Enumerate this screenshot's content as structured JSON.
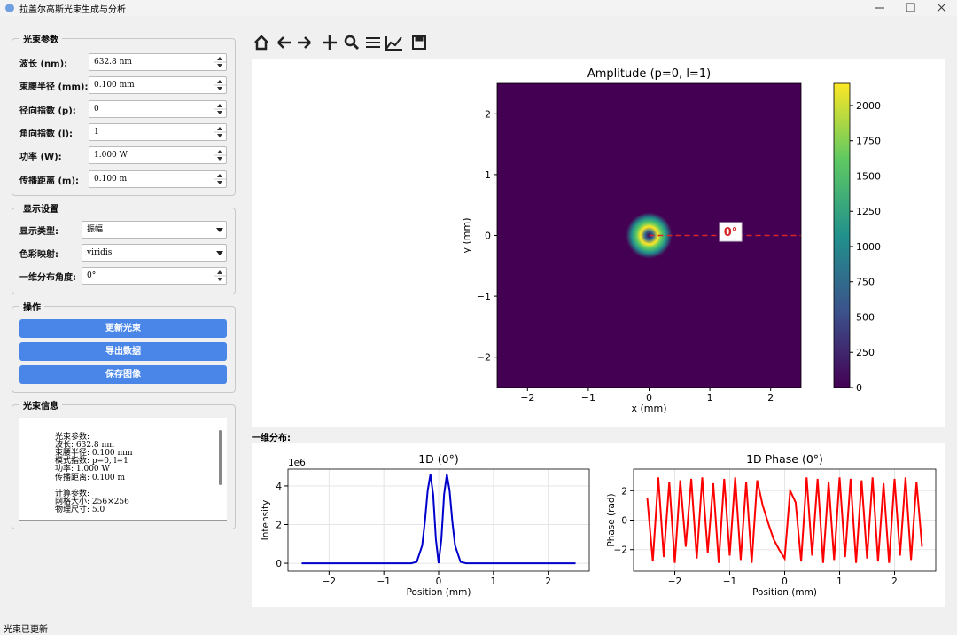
{
  "window": {
    "title": "拉盖尔高斯光束生成与分析"
  },
  "beam_params": {
    "title": "光束参数",
    "fields": [
      {
        "label": "波长 (nm):",
        "value": "632.8 nm"
      },
      {
        "label": "束腰半径 (mm):",
        "value": "0.100 mm"
      },
      {
        "label": "径向指数 (p):",
        "value": "0"
      },
      {
        "label": "角向指数 (l):",
        "value": "1"
      },
      {
        "label": "功率 (W):",
        "value": "1.000 W"
      },
      {
        "label": "传播距离 (m):",
        "value": "0.100 m"
      }
    ]
  },
  "display": {
    "title": "显示设置",
    "fields": [
      {
        "label": "显示类型:",
        "value": "振幅",
        "kind": "combo"
      },
      {
        "label": "色彩映射:",
        "value": "viridis",
        "kind": "combo"
      },
      {
        "label": "一维分布角度:",
        "value": "0°",
        "kind": "spin"
      }
    ]
  },
  "actions": {
    "title": "操作",
    "buttons": [
      "更新光束",
      "导出数据",
      "保存图像"
    ]
  },
  "info": {
    "title": "光束信息",
    "beam": [
      "光束参数:",
      "波长: 632.8 nm",
      "束腰半径: 0.100 mm",
      "模式指数: p=0, l=1",
      "功率: 1.000 W",
      "传播距离: 0.100 m"
    ],
    "calc": [
      "计算参数:",
      "网格大小: 256×256",
      "物理尺寸: 5.0"
    ]
  },
  "section_label": "一维分布:",
  "status": "光束已更新",
  "chart_data": [
    {
      "type": "heatmap",
      "title": "Amplitude (p=0, l=1)",
      "x_label": "x (mm)",
      "y_label": "y (mm)",
      "colormap": "viridis",
      "xlim": [
        -2.5,
        2.5
      ],
      "ylim": [
        -2.5,
        2.5
      ],
      "xticks": [
        {
          "value": -2,
          "label": "−2"
        },
        {
          "value": -1,
          "label": "−1"
        },
        0,
        1,
        2
      ],
      "yticks": [
        {
          "value": -2,
          "label": "−2"
        },
        {
          "value": -1,
          "label": "−1"
        },
        0,
        1,
        2
      ],
      "clim": [
        0,
        2157
      ],
      "cticks": [
        0,
        250,
        500,
        750,
        1000,
        1250,
        1500,
        1750,
        2000
      ],
      "annotation": "0°",
      "annotation_color": "#d62728"
    },
    {
      "type": "line",
      "title": "1D (0°)",
      "x_label": "Position (mm)",
      "y_label": "Intensity",
      "y_offset_label": "1e6",
      "color": "#0000cc",
      "grid": true,
      "xlim": [
        -2.75,
        2.75
      ],
      "ylim": [
        -0.41,
        4.87
      ],
      "xticks": [
        {
          "value": -2,
          "label": "−2"
        },
        {
          "value": -1,
          "label": "−1"
        },
        0,
        1,
        2
      ],
      "yticks": [
        0,
        2,
        4
      ],
      "x": [
        -2.5,
        -0.5,
        -0.4,
        -0.3,
        -0.25,
        -0.2,
        -0.15,
        -0.1,
        -0.05,
        0,
        0.05,
        0.1,
        0.15,
        0.2,
        0.25,
        0.3,
        0.4,
        0.5,
        2.5
      ],
      "values": [
        0,
        0,
        0.07,
        0.92,
        2.16,
        3.76,
        4.6,
        3.56,
        1.24,
        0,
        1.24,
        3.56,
        4.6,
        3.76,
        2.16,
        0.92,
        0.07,
        0,
        0
      ]
    },
    {
      "type": "line",
      "title": "1D Phase (0°)",
      "x_label": "Position (mm)",
      "y_label": "Phase (rad)",
      "color": "#ff0000",
      "grid": true,
      "xlim": [
        -2.75,
        2.75
      ],
      "ylim": [
        -3.46,
        3.46
      ],
      "xticks": [
        {
          "value": -2,
          "label": "−2"
        },
        {
          "value": -1,
          "label": "−1"
        },
        0,
        1,
        2
      ],
      "yticks": [
        {
          "value": -2,
          "label": "−2"
        },
        0,
        2
      ],
      "x": [
        -2.5,
        -2.4,
        -2.3,
        -2.2,
        -2.1,
        -2.0,
        -1.9,
        -1.8,
        -1.7,
        -1.6,
        -1.5,
        -1.4,
        -1.3,
        -1.2,
        -1.1,
        -1.0,
        -0.9,
        -0.8,
        -0.7,
        -0.6,
        -0.5,
        -0.4,
        -0.3,
        -0.2,
        -0.1,
        0,
        0.1,
        0.2,
        0.3,
        0.4,
        0.5,
        0.6,
        0.7,
        0.8,
        0.9,
        1.0,
        1.1,
        1.2,
        1.3,
        1.4,
        1.5,
        1.6,
        1.7,
        1.8,
        1.9,
        2.0,
        2.1,
        2.2,
        2.3,
        2.4,
        2.5
      ],
      "values": [
        1.5,
        -2.8,
        2.9,
        -2.5,
        2.6,
        -2.9,
        2.7,
        -1.8,
        2.8,
        -2.6,
        2.9,
        -2.2,
        2.5,
        -2.9,
        2.8,
        -2.4,
        2.9,
        -2.7,
        2.6,
        -2.9,
        2.7,
        1.0,
        -0.2,
        -1.3,
        -2.0,
        -2.6,
        2.0,
        1.2,
        -2.8,
        2.9,
        -2.4,
        2.8,
        -2.9,
        2.6,
        -2.7,
        2.9,
        -2.5,
        2.8,
        -2.9,
        2.7,
        -2.6,
        2.9,
        -2.8,
        2.5,
        -2.9,
        2.8,
        -2.4,
        2.9,
        -2.7,
        2.6,
        -1.8
      ]
    }
  ]
}
